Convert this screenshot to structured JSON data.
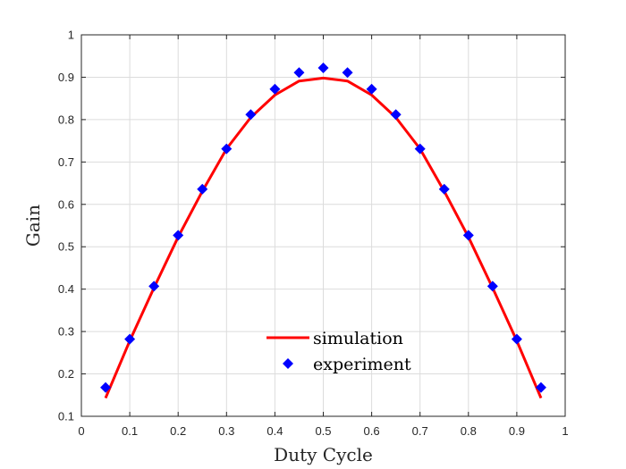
{
  "chart_data": {
    "type": "line",
    "xlabel": "Duty Cycle",
    "ylabel": "Gain",
    "xlim": [
      0,
      1
    ],
    "ylim": [
      0.1,
      1
    ],
    "xticks": [
      "0",
      "0.1",
      "0.2",
      "0.3",
      "0.4",
      "0.5",
      "0.6",
      "0.7",
      "0.8",
      "0.9",
      "1"
    ],
    "yticks": [
      "0.1",
      "0.2",
      "0.3",
      "0.4",
      "0.5",
      "0.6",
      "0.7",
      "0.8",
      "0.9",
      "1"
    ],
    "grid": true,
    "legend_position": "bottom-center",
    "series": [
      {
        "name": "simulation",
        "style": "line",
        "color": "#ff0000",
        "x": [
          0.05,
          0.1,
          0.15,
          0.2,
          0.25,
          0.3,
          0.35,
          0.4,
          0.45,
          0.5,
          0.55,
          0.6,
          0.65,
          0.7,
          0.75,
          0.8,
          0.85,
          0.9,
          0.95
        ],
        "y": [
          0.143,
          0.278,
          0.403,
          0.523,
          0.631,
          0.731,
          0.805,
          0.858,
          0.891,
          0.898,
          0.891,
          0.858,
          0.805,
          0.731,
          0.631,
          0.523,
          0.403,
          0.278,
          0.143
        ]
      },
      {
        "name": "experiment",
        "style": "marker",
        "color": "#0000ff",
        "x": [
          0.05,
          0.1,
          0.15,
          0.2,
          0.25,
          0.3,
          0.35,
          0.4,
          0.45,
          0.5,
          0.55,
          0.6,
          0.65,
          0.7,
          0.75,
          0.8,
          0.85,
          0.9,
          0.95
        ],
        "y": [
          0.168,
          0.282,
          0.407,
          0.527,
          0.636,
          0.731,
          0.812,
          0.872,
          0.911,
          0.922,
          0.911,
          0.872,
          0.812,
          0.731,
          0.636,
          0.527,
          0.407,
          0.282,
          0.168
        ]
      }
    ]
  }
}
